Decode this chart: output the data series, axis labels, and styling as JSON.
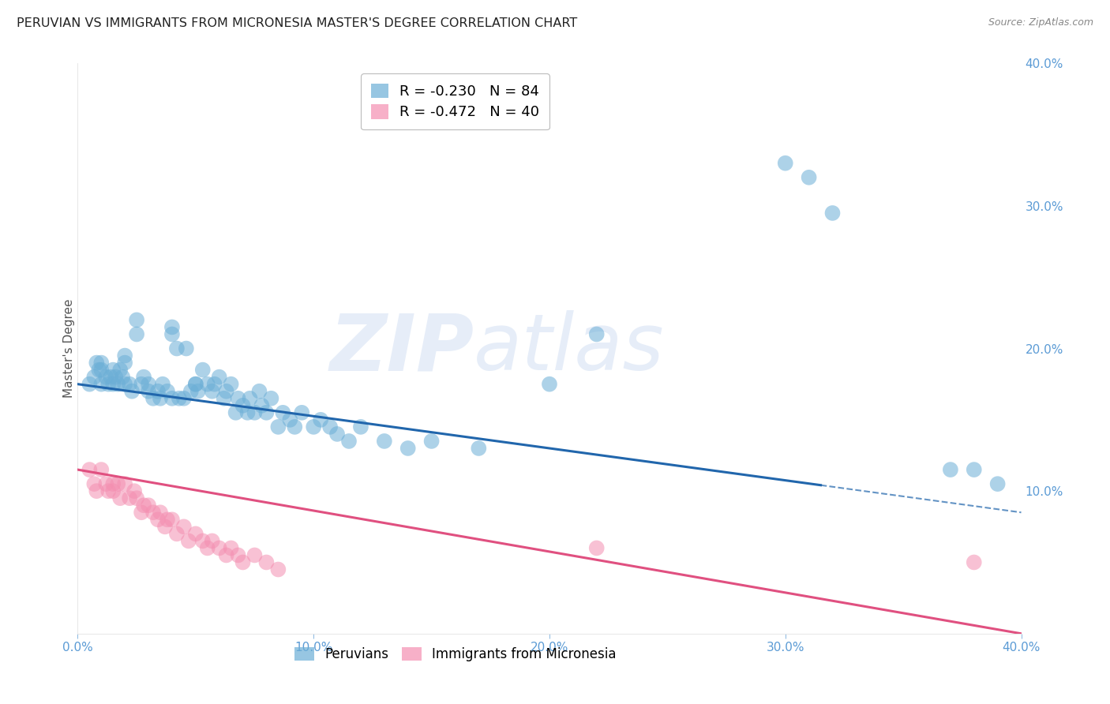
{
  "title": "PERUVIAN VS IMMIGRANTS FROM MICRONESIA MASTER'S DEGREE CORRELATION CHART",
  "source": "Source: ZipAtlas.com",
  "ylabel": "Master's Degree",
  "watermark": "ZIPatlas",
  "xlim": [
    0.0,
    0.4
  ],
  "ylim": [
    0.0,
    0.4
  ],
  "peruvians_color": "#6baed6",
  "micronesia_color": "#f48fb1",
  "blue_line_color": "#2166ac",
  "pink_line_color": "#e05080",
  "background_color": "#ffffff",
  "grid_color": "#cccccc",
  "title_color": "#222222",
  "tick_label_color": "#5b9bd5",
  "blue_line_y0": 0.175,
  "blue_line_y1": 0.085,
  "blue_line_solid_end": 0.315,
  "pink_line_y0": 0.115,
  "pink_line_y1": 0.0,
  "peruvians_x": [
    0.005,
    0.007,
    0.008,
    0.009,
    0.01,
    0.01,
    0.01,
    0.012,
    0.013,
    0.014,
    0.015,
    0.015,
    0.016,
    0.017,
    0.018,
    0.019,
    0.02,
    0.02,
    0.02,
    0.022,
    0.023,
    0.025,
    0.025,
    0.027,
    0.028,
    0.03,
    0.03,
    0.032,
    0.034,
    0.035,
    0.036,
    0.038,
    0.04,
    0.04,
    0.042,
    0.043,
    0.045,
    0.046,
    0.048,
    0.05,
    0.051,
    0.053,
    0.055,
    0.057,
    0.058,
    0.06,
    0.062,
    0.063,
    0.065,
    0.067,
    0.068,
    0.07,
    0.072,
    0.073,
    0.075,
    0.077,
    0.078,
    0.08,
    0.082,
    0.085,
    0.087,
    0.09,
    0.092,
    0.095,
    0.1,
    0.103,
    0.107,
    0.11,
    0.115,
    0.12,
    0.13,
    0.14,
    0.15,
    0.17,
    0.2,
    0.22,
    0.3,
    0.31,
    0.32,
    0.37,
    0.38,
    0.39,
    0.04,
    0.05
  ],
  "peruvians_y": [
    0.175,
    0.18,
    0.19,
    0.185,
    0.175,
    0.185,
    0.19,
    0.18,
    0.175,
    0.18,
    0.175,
    0.185,
    0.18,
    0.175,
    0.185,
    0.18,
    0.19,
    0.195,
    0.175,
    0.175,
    0.17,
    0.21,
    0.22,
    0.175,
    0.18,
    0.175,
    0.17,
    0.165,
    0.17,
    0.165,
    0.175,
    0.17,
    0.21,
    0.215,
    0.2,
    0.165,
    0.165,
    0.2,
    0.17,
    0.175,
    0.17,
    0.185,
    0.175,
    0.17,
    0.175,
    0.18,
    0.165,
    0.17,
    0.175,
    0.155,
    0.165,
    0.16,
    0.155,
    0.165,
    0.155,
    0.17,
    0.16,
    0.155,
    0.165,
    0.145,
    0.155,
    0.15,
    0.145,
    0.155,
    0.145,
    0.15,
    0.145,
    0.14,
    0.135,
    0.145,
    0.135,
    0.13,
    0.135,
    0.13,
    0.175,
    0.21,
    0.33,
    0.32,
    0.295,
    0.115,
    0.115,
    0.105,
    0.165,
    0.175
  ],
  "micronesia_x": [
    0.005,
    0.007,
    0.008,
    0.01,
    0.012,
    0.013,
    0.015,
    0.015,
    0.017,
    0.018,
    0.02,
    0.022,
    0.024,
    0.025,
    0.027,
    0.028,
    0.03,
    0.032,
    0.034,
    0.035,
    0.037,
    0.038,
    0.04,
    0.042,
    0.045,
    0.047,
    0.05,
    0.053,
    0.055,
    0.057,
    0.06,
    0.063,
    0.065,
    0.068,
    0.07,
    0.075,
    0.08,
    0.085,
    0.22,
    0.38
  ],
  "micronesia_y": [
    0.115,
    0.105,
    0.1,
    0.115,
    0.105,
    0.1,
    0.105,
    0.1,
    0.105,
    0.095,
    0.105,
    0.095,
    0.1,
    0.095,
    0.085,
    0.09,
    0.09,
    0.085,
    0.08,
    0.085,
    0.075,
    0.08,
    0.08,
    0.07,
    0.075,
    0.065,
    0.07,
    0.065,
    0.06,
    0.065,
    0.06,
    0.055,
    0.06,
    0.055,
    0.05,
    0.055,
    0.05,
    0.045,
    0.06,
    0.05
  ]
}
